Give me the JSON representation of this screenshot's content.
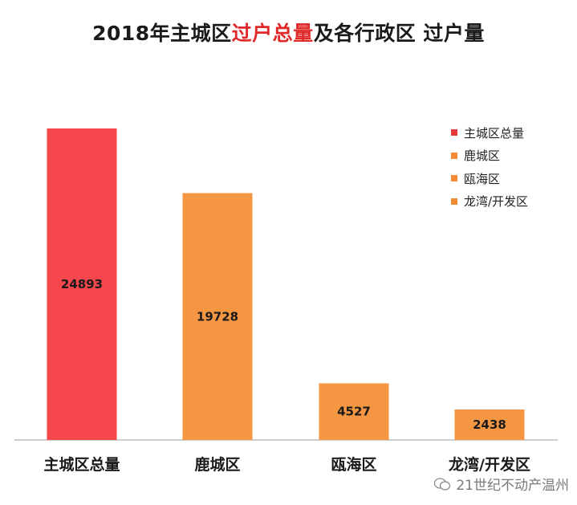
{
  "title": {
    "part1": "2018年主城区",
    "part2": "过户总量",
    "part3": "及各行政区 过户量"
  },
  "chart_data": {
    "type": "bar",
    "categories": [
      "主城区总量",
      "鹿城区",
      "瓯海区",
      "龙湾/开发区"
    ],
    "values": [
      24893,
      19728,
      4527,
      2438
    ],
    "colors": [
      "#f5474c",
      "#f59742",
      "#f59742",
      "#f59742"
    ],
    "ylim": [
      0,
      24893
    ],
    "grid": false,
    "legend_position": "top-right",
    "legend": [
      {
        "label": "主城区总量",
        "color": "#e53a3a"
      },
      {
        "label": "鹿城区",
        "color": "#f08a35"
      },
      {
        "label": "瓯海区",
        "color": "#f08a35"
      },
      {
        "label": "龙湾/开发区",
        "color": "#f08a35"
      }
    ]
  },
  "watermark": "21世纪不动产温州"
}
